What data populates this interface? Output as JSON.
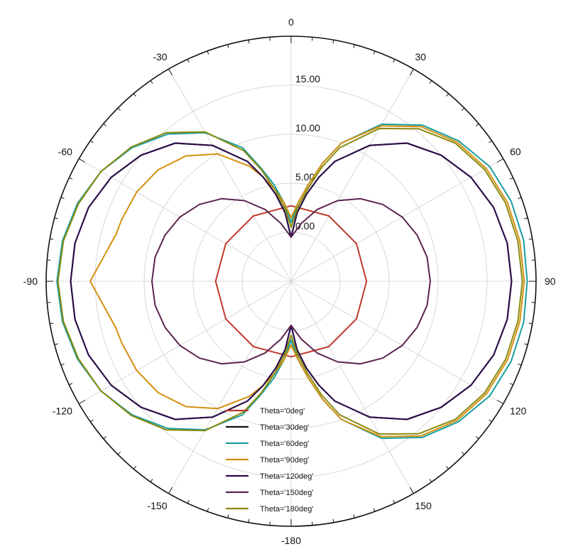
{
  "chart_data": {
    "type": "polar",
    "angle_unit": "deg",
    "radial_range": [
      -5,
      20
    ],
    "radial_ticks": [
      "0.00",
      "5.00",
      "10.00",
      "15.00"
    ],
    "angle_ticks": [
      "0",
      "30",
      "60",
      "90",
      "120",
      "150",
      "-180",
      "-150",
      "-120",
      "-90",
      "-60",
      "-30"
    ],
    "grid": true,
    "legend": "bottom-center",
    "series": [
      {
        "name": "Theta='0deg'",
        "color": "#c0392b",
        "points": [
          [
            0,
            2.7
          ],
          [
            30,
            2.7
          ],
          [
            60,
            2.7
          ],
          [
            90,
            2.7
          ],
          [
            120,
            2.7
          ],
          [
            150,
            2.7
          ],
          [
            180,
            2.7
          ],
          [
            210,
            2.7
          ],
          [
            240,
            2.7
          ],
          [
            270,
            2.7
          ],
          [
            300,
            2.7
          ],
          [
            330,
            2.7
          ],
          [
            360,
            2.7
          ]
        ]
      },
      {
        "name": "Theta='30deg'",
        "color": "#111111",
        "points": [
          [
            0,
            -0.5
          ],
          [
            5,
            2
          ],
          [
            10,
            4
          ],
          [
            15,
            6
          ],
          [
            20,
            8
          ],
          [
            30,
            11
          ],
          [
            40,
            13.4
          ],
          [
            50,
            15
          ],
          [
            60,
            16.2
          ],
          [
            70,
            17
          ],
          [
            80,
            17.4
          ],
          [
            90,
            17.5
          ],
          [
            100,
            17.4
          ],
          [
            110,
            17
          ],
          [
            120,
            16.2
          ],
          [
            130,
            15
          ],
          [
            140,
            13.4
          ],
          [
            150,
            11
          ],
          [
            160,
            8
          ],
          [
            165,
            6
          ],
          [
            170,
            4
          ],
          [
            175,
            2
          ],
          [
            180,
            -0.5
          ],
          [
            185,
            2
          ],
          [
            190,
            4
          ],
          [
            195,
            6
          ],
          [
            200,
            8
          ],
          [
            210,
            11
          ],
          [
            220,
            13.4
          ],
          [
            230,
            15
          ],
          [
            240,
            16.2
          ],
          [
            250,
            17
          ],
          [
            260,
            17.4
          ],
          [
            270,
            17.5
          ],
          [
            280,
            17.4
          ],
          [
            290,
            17
          ],
          [
            300,
            16.2
          ],
          [
            310,
            15
          ],
          [
            320,
            13.4
          ],
          [
            330,
            11
          ],
          [
            340,
            8
          ],
          [
            345,
            6
          ],
          [
            350,
            4
          ],
          [
            355,
            2
          ],
          [
            360,
            -0.5
          ]
        ]
      },
      {
        "name": "Theta='60deg'",
        "color": "#1a9e9e",
        "points": [
          [
            0,
            1
          ],
          [
            5,
            3
          ],
          [
            10,
            5
          ],
          [
            15,
            7.5
          ],
          [
            20,
            10
          ],
          [
            30,
            13.5
          ],
          [
            40,
            15.8
          ],
          [
            50,
            17.3
          ],
          [
            60,
            18.4
          ],
          [
            70,
            18.9
          ],
          [
            80,
            19.1
          ],
          [
            90,
            19.1
          ],
          [
            100,
            19.1
          ],
          [
            110,
            18.9
          ],
          [
            120,
            18.4
          ],
          [
            130,
            17.3
          ],
          [
            140,
            15.8
          ],
          [
            150,
            13.5
          ],
          [
            160,
            10
          ],
          [
            165,
            7.5
          ],
          [
            170,
            5
          ],
          [
            175,
            3
          ],
          [
            180,
            1
          ],
          [
            185,
            3
          ],
          [
            190,
            5
          ],
          [
            195,
            7
          ],
          [
            200,
            9.5
          ],
          [
            210,
            12.5
          ],
          [
            220,
            14.6
          ],
          [
            230,
            16.2
          ],
          [
            240,
            17.4
          ],
          [
            250,
            18.2
          ],
          [
            260,
            18.7
          ],
          [
            270,
            18.9
          ],
          [
            280,
            18.7
          ],
          [
            290,
            18.2
          ],
          [
            300,
            17.4
          ],
          [
            310,
            16.2
          ],
          [
            320,
            14.6
          ],
          [
            330,
            12.5
          ],
          [
            340,
            9.5
          ],
          [
            345,
            7
          ],
          [
            350,
            5
          ],
          [
            355,
            3
          ],
          [
            360,
            1
          ]
        ]
      },
      {
        "name": "Theta='90deg'",
        "color": "#d4900e",
        "points": [
          [
            0,
            1.5
          ],
          [
            5,
            3
          ],
          [
            10,
            5
          ],
          [
            15,
            7.5
          ],
          [
            20,
            10
          ],
          [
            30,
            13.3
          ],
          [
            40,
            15.6
          ],
          [
            50,
            17.1
          ],
          [
            60,
            18
          ],
          [
            70,
            18.5
          ],
          [
            80,
            18.7
          ],
          [
            90,
            18.8
          ],
          [
            100,
            18.7
          ],
          [
            110,
            18.5
          ],
          [
            120,
            18
          ],
          [
            130,
            17.1
          ],
          [
            140,
            15.6
          ],
          [
            150,
            13.3
          ],
          [
            160,
            10
          ],
          [
            165,
            7.5
          ],
          [
            170,
            5
          ],
          [
            175,
            3
          ],
          [
            180,
            1.5
          ],
          [
            185,
            3
          ],
          [
            190,
            4.5
          ],
          [
            195,
            6
          ],
          [
            200,
            7.5
          ],
          [
            210,
            10
          ],
          [
            220,
            11.7
          ],
          [
            230,
            12.7
          ],
          [
            240,
            13.2
          ],
          [
            250,
            13.4
          ],
          [
            255,
            13.5
          ],
          [
            270,
            15.5
          ],
          [
            285,
            13.5
          ],
          [
            290,
            13.4
          ],
          [
            300,
            13.2
          ],
          [
            310,
            12.7
          ],
          [
            320,
            11.7
          ],
          [
            330,
            10
          ],
          [
            340,
            7.5
          ],
          [
            345,
            6
          ],
          [
            350,
            4.5
          ],
          [
            355,
            3
          ],
          [
            360,
            1.5
          ]
        ]
      },
      {
        "name": "Theta='120deg'",
        "color": "#2a0a4a",
        "points": [
          [
            0,
            -0.5
          ],
          [
            5,
            2
          ],
          [
            10,
            4
          ],
          [
            15,
            6
          ],
          [
            20,
            8
          ],
          [
            30,
            11
          ],
          [
            40,
            13.4
          ],
          [
            50,
            15
          ],
          [
            60,
            16.2
          ],
          [
            70,
            17
          ],
          [
            80,
            17.4
          ],
          [
            90,
            17.5
          ],
          [
            100,
            17.4
          ],
          [
            110,
            17
          ],
          [
            120,
            16.2
          ],
          [
            130,
            15
          ],
          [
            140,
            13.4
          ],
          [
            150,
            11
          ],
          [
            160,
            8
          ],
          [
            165,
            6
          ],
          [
            170,
            4
          ],
          [
            175,
            2
          ],
          [
            180,
            -0.5
          ],
          [
            185,
            2
          ],
          [
            190,
            4
          ],
          [
            195,
            6
          ],
          [
            200,
            8
          ],
          [
            210,
            11
          ],
          [
            220,
            13.4
          ],
          [
            230,
            15
          ],
          [
            240,
            16.2
          ],
          [
            250,
            17
          ],
          [
            260,
            17.4
          ],
          [
            270,
            17.5
          ],
          [
            280,
            17.4
          ],
          [
            290,
            17
          ],
          [
            300,
            16.2
          ],
          [
            310,
            15
          ],
          [
            320,
            13.4
          ],
          [
            330,
            11
          ],
          [
            340,
            8
          ],
          [
            345,
            6
          ],
          [
            350,
            4
          ],
          [
            355,
            2
          ],
          [
            360,
            -0.5
          ]
        ]
      },
      {
        "name": "Theta='150deg'",
        "color": "#5b2550",
        "points": [
          [
            0,
            -0.5
          ],
          [
            10,
            1
          ],
          [
            20,
            2.8
          ],
          [
            30,
            4.5
          ],
          [
            40,
            6
          ],
          [
            50,
            7.2
          ],
          [
            60,
            8.1
          ],
          [
            70,
            8.7
          ],
          [
            80,
            9.1
          ],
          [
            90,
            9.2
          ],
          [
            100,
            9.1
          ],
          [
            110,
            8.7
          ],
          [
            120,
            8.1
          ],
          [
            130,
            7.2
          ],
          [
            140,
            6
          ],
          [
            150,
            4.5
          ],
          [
            160,
            2.8
          ],
          [
            170,
            1
          ],
          [
            180,
            -0.5
          ],
          [
            190,
            1
          ],
          [
            200,
            2.8
          ],
          [
            210,
            4.5
          ],
          [
            220,
            6
          ],
          [
            230,
            7.2
          ],
          [
            240,
            8.1
          ],
          [
            250,
            8.7
          ],
          [
            260,
            9.1
          ],
          [
            270,
            9.2
          ],
          [
            280,
            9.1
          ],
          [
            290,
            8.7
          ],
          [
            300,
            8.1
          ],
          [
            310,
            7.2
          ],
          [
            320,
            6
          ],
          [
            330,
            4.5
          ],
          [
            340,
            2.8
          ],
          [
            350,
            1
          ],
          [
            360,
            -0.5
          ]
        ]
      },
      {
        "name": "Theta='180deg'",
        "color": "#8a8a10",
        "points": [
          [
            0,
            0.5
          ],
          [
            5,
            2.5
          ],
          [
            10,
            4.5
          ],
          [
            15,
            7
          ],
          [
            20,
            9.5
          ],
          [
            30,
            13
          ],
          [
            40,
            15.3
          ],
          [
            50,
            16.9
          ],
          [
            60,
            17.8
          ],
          [
            70,
            18.3
          ],
          [
            80,
            18.5
          ],
          [
            90,
            18.6
          ],
          [
            100,
            18.5
          ],
          [
            110,
            18.3
          ],
          [
            120,
            17.8
          ],
          [
            130,
            16.9
          ],
          [
            140,
            15.3
          ],
          [
            150,
            13
          ],
          [
            160,
            9.5
          ],
          [
            165,
            7
          ],
          [
            170,
            4.5
          ],
          [
            175,
            2.5
          ],
          [
            180,
            0.5
          ],
          [
            185,
            2.5
          ],
          [
            190,
            4.5
          ],
          [
            195,
            6.8
          ],
          [
            200,
            9.2
          ],
          [
            210,
            12.6
          ],
          [
            220,
            14.8
          ],
          [
            230,
            16.3
          ],
          [
            240,
            17.4
          ],
          [
            250,
            18.1
          ],
          [
            260,
            18.6
          ],
          [
            270,
            18.8
          ],
          [
            280,
            18.6
          ],
          [
            290,
            18.1
          ],
          [
            300,
            17.4
          ],
          [
            310,
            16.3
          ],
          [
            320,
            14.8
          ],
          [
            330,
            12.6
          ],
          [
            340,
            9.2
          ],
          [
            345,
            6.8
          ],
          [
            350,
            4.5
          ],
          [
            355,
            2.5
          ],
          [
            360,
            0.5
          ]
        ]
      }
    ]
  }
}
